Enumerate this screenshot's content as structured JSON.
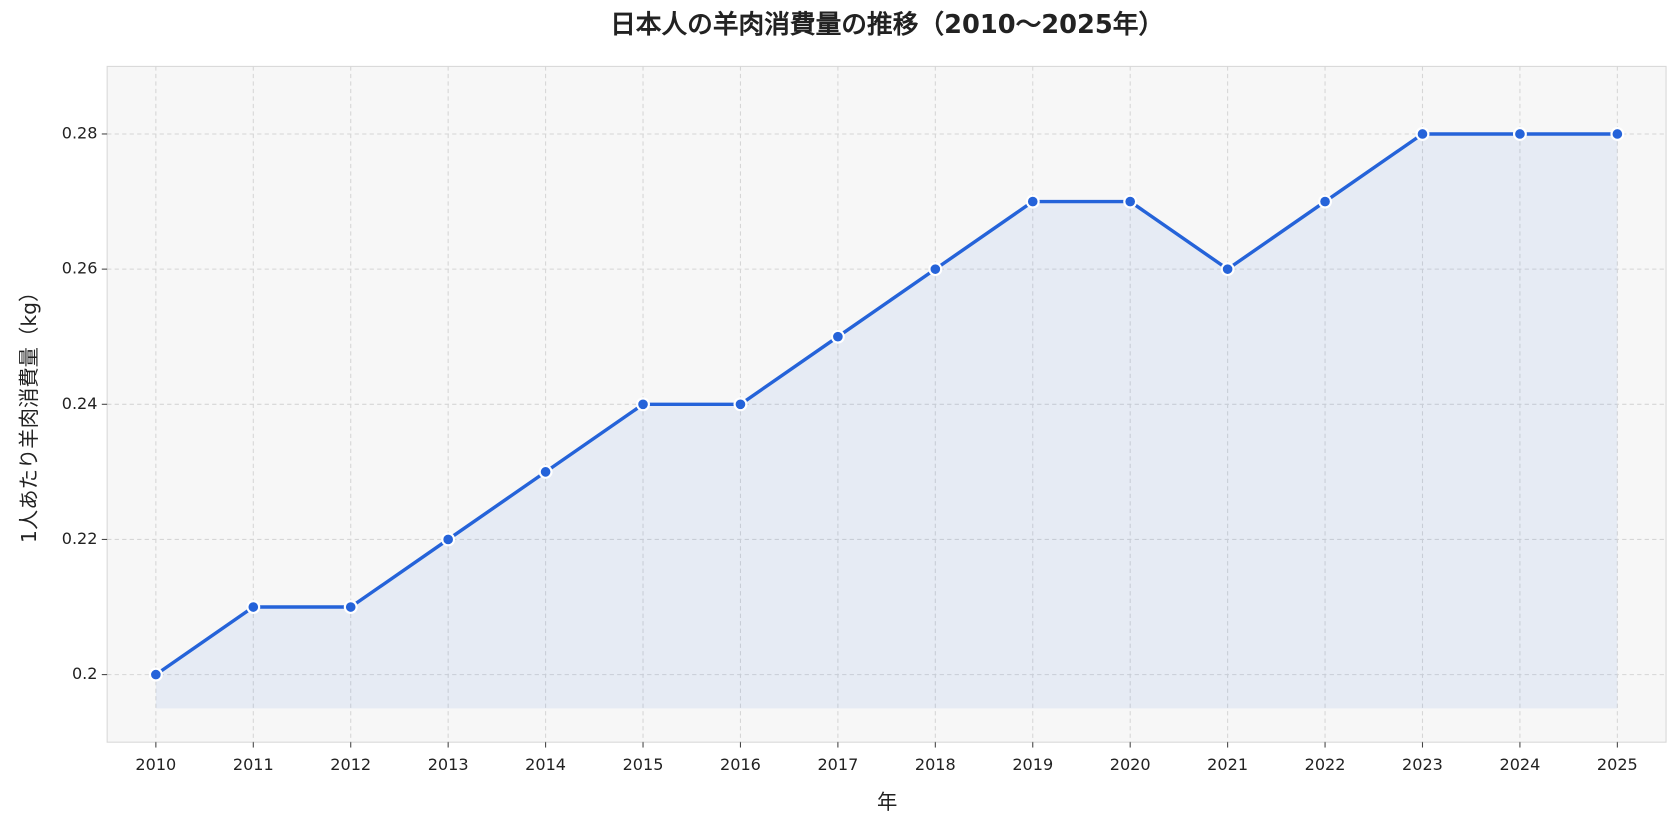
{
  "chart_data": {
    "type": "line",
    "title": "日本人の羊肉消費量の推移（2010〜2025年）",
    "x_label": "年",
    "y_label": "1人あたり羊肉消費量（kg）",
    "x": [
      2010,
      2011,
      2012,
      2013,
      2014,
      2015,
      2016,
      2017,
      2018,
      2019,
      2020,
      2021,
      2022,
      2023,
      2024,
      2025
    ],
    "series": [
      {
        "color": "#2563d9",
        "values": [
          0.2,
          0.21,
          0.21,
          0.22,
          0.23,
          0.24,
          0.24,
          0.25,
          0.26,
          0.27,
          0.27,
          0.26,
          0.27,
          0.28,
          0.28,
          0.28
        ]
      }
    ],
    "xlim": [
      2009.5,
      2025.5
    ],
    "xticks": [
      2010,
      2011,
      2012,
      2013,
      2014,
      2015,
      2016,
      2017,
      2018,
      2019,
      2020,
      2021,
      2022,
      2023,
      2024,
      2025
    ],
    "ylim": [
      0.19,
      0.29
    ],
    "yticks": [
      0.2,
      0.22,
      0.24,
      0.26,
      0.28
    ],
    "grid": true,
    "area_fill": true
  }
}
